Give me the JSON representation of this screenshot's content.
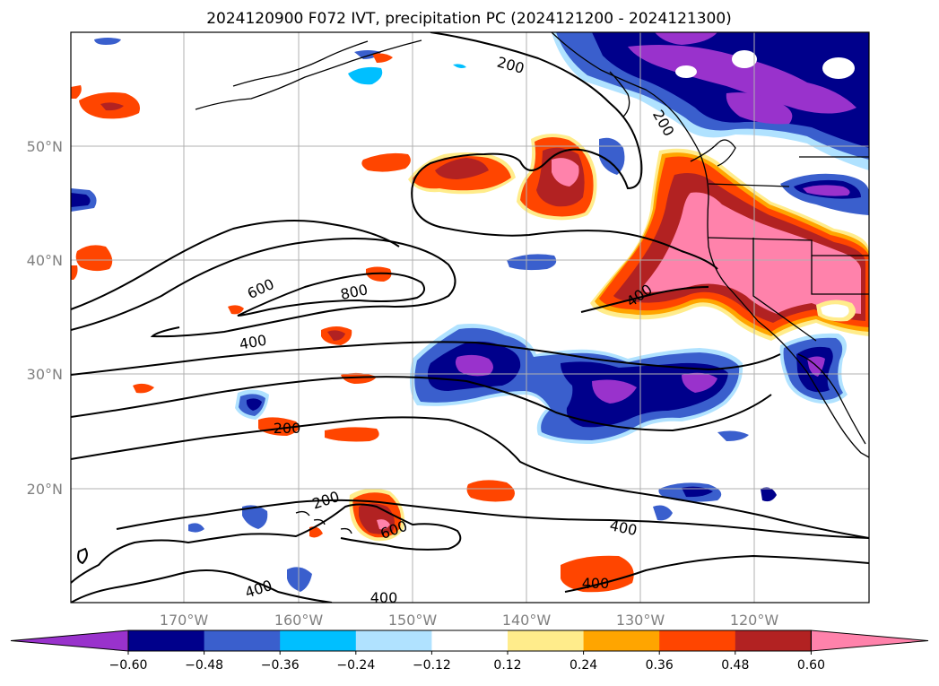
{
  "title": "2024120900 F072 IVT, precipitation PC (2024121200 - 2024121300)",
  "lat_labels": [
    "50°N",
    "40°N",
    "30°N",
    "20°N"
  ],
  "lon_labels": [
    "170°W",
    "160°W",
    "150°W",
    "140°W",
    "130°W",
    "120°W"
  ],
  "colorbar": {
    "ticks": [
      "−0.60",
      "−0.48",
      "−0.36",
      "−0.24",
      "−0.12",
      "0.12",
      "0.24",
      "0.36",
      "0.48",
      "0.60"
    ],
    "colors": [
      "#9932CC",
      "#00008B",
      "#3A5FCD",
      "#00BFFF",
      "#B0E2FF",
      "#FFFFFF",
      "#FFEC8B",
      "#FFA500",
      "#FF4500",
      "#B22222",
      "#FF82AB"
    ]
  },
  "contour_labels": [
    {
      "text": "200"
    },
    {
      "text": "200"
    },
    {
      "text": "600"
    },
    {
      "text": "800"
    },
    {
      "text": "400"
    },
    {
      "text": "400"
    },
    {
      "text": "200"
    },
    {
      "text": "200"
    },
    {
      "text": "600"
    },
    {
      "text": "400"
    },
    {
      "text": "400"
    },
    {
      "text": "400"
    },
    {
      "text": "400"
    }
  ]
}
